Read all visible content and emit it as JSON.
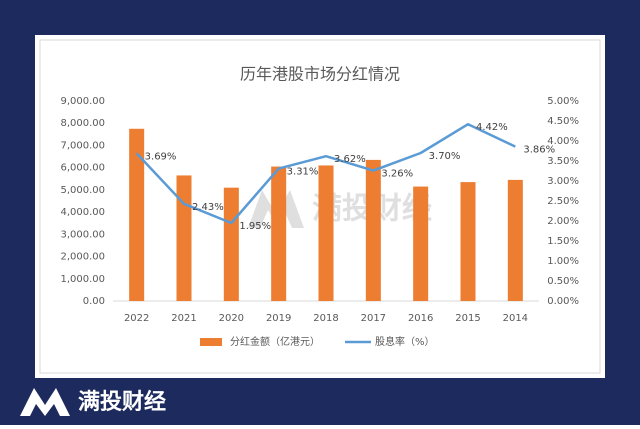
{
  "brand": "满投财经",
  "chart_data": {
    "type": "bar-line",
    "title": "历年港股市场分红情况",
    "categories": [
      "2022",
      "2021",
      "2020",
      "2019",
      "2018",
      "2017",
      "2016",
      "2015",
      "2014"
    ],
    "series": [
      {
        "name": "分红金额（亿港元）",
        "type": "bar",
        "color": "#ed7d31",
        "values": [
          7750,
          5650,
          5100,
          6050,
          6100,
          6350,
          5150,
          5350,
          5450
        ]
      },
      {
        "name": "股息率（%）",
        "type": "line",
        "axis": "y2",
        "color": "#5b9bd5",
        "values": [
          3.69,
          2.43,
          1.95,
          3.31,
          3.62,
          3.26,
          3.7,
          4.42,
          3.86
        ],
        "value_labels": [
          "3.69%",
          "2.43%",
          "1.95%",
          "3.31%",
          "3.62%",
          "3.26%",
          "3.70%",
          "4.42%",
          "3.86%"
        ]
      }
    ],
    "ylim": [
      0,
      9000
    ],
    "yticks": [
      {
        "value": 0,
        "label": "0.00"
      },
      {
        "value": 1000,
        "label": "1,000.00"
      },
      {
        "value": 2000,
        "label": "2,000.00"
      },
      {
        "value": 3000,
        "label": "3,000.00"
      },
      {
        "value": 4000,
        "label": "4,000.00"
      },
      {
        "value": 5000,
        "label": "5,000.00"
      },
      {
        "value": 6000,
        "label": "6,000.00"
      },
      {
        "value": 7000,
        "label": "7,000.00"
      },
      {
        "value": 8000,
        "label": "8,000.00"
      },
      {
        "value": 9000,
        "label": "9,000.00"
      }
    ],
    "y2lim": [
      0,
      5
    ],
    "y2ticks": [
      {
        "value": 0,
        "label": "0.00%"
      },
      {
        "value": 0.5,
        "label": "0.50%"
      },
      {
        "value": 1,
        "label": "1.00%"
      },
      {
        "value": 1.5,
        "label": "1.50%"
      },
      {
        "value": 2,
        "label": "2.00%"
      },
      {
        "value": 2.5,
        "label": "2.50%"
      },
      {
        "value": 3,
        "label": "3.00%"
      },
      {
        "value": 3.5,
        "label": "3.50%"
      },
      {
        "value": 4,
        "label": "4.00%"
      },
      {
        "value": 4.5,
        "label": "4.50%"
      },
      {
        "value": 5,
        "label": "5.00%"
      }
    ],
    "legend": "bottom"
  }
}
